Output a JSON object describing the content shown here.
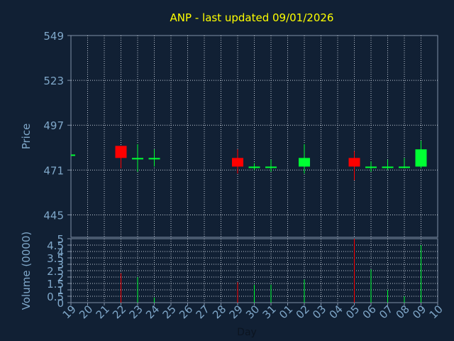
{
  "chart_data": [
    {
      "type": "candlestick",
      "title": "ANP - last updated 09/01/2026",
      "ylabel": "Price",
      "ylim": [
        432,
        549
      ],
      "yticks": [
        549,
        523,
        497,
        471,
        445
      ],
      "grid": true,
      "up_color": "#00ff33",
      "down_color": "#ff0000",
      "candles": [
        {
          "day": "19",
          "open": 480,
          "close": 480,
          "high": 480,
          "low": 480
        },
        {
          "day": "22",
          "open": 485,
          "close": 478,
          "high": 485,
          "low": 472
        },
        {
          "day": "23",
          "open": 478,
          "close": 478,
          "high": 486,
          "low": 470
        },
        {
          "day": "24",
          "open": 478,
          "close": 478,
          "high": 483,
          "low": 473
        },
        {
          "day": "29",
          "open": 478,
          "close": 473,
          "high": 483,
          "low": 469
        },
        {
          "day": "30",
          "open": 473,
          "close": 473,
          "high": 475,
          "low": 471
        },
        {
          "day": "31",
          "open": 473,
          "close": 473,
          "high": 477,
          "low": 470
        },
        {
          "day": "02",
          "open": 473,
          "close": 478,
          "high": 486,
          "low": 469
        },
        {
          "day": "05",
          "open": 478,
          "close": 473,
          "high": 482,
          "low": 465
        },
        {
          "day": "06",
          "open": 473,
          "close": 473,
          "high": 476,
          "low": 470
        },
        {
          "day": "07",
          "open": 473,
          "close": 473,
          "high": 477,
          "low": 471
        },
        {
          "day": "08",
          "open": 473,
          "close": 473,
          "high": 478,
          "low": 472
        },
        {
          "day": "09",
          "open": 473,
          "close": 483,
          "high": 488,
          "low": 472
        }
      ]
    },
    {
      "type": "bar",
      "ylabel": "Volume (0000)",
      "xlabel": "Day",
      "ylim": [
        0,
        5
      ],
      "yticks": [
        "0",
        "0.5",
        "1",
        "1.5",
        "2",
        "2.5",
        "3",
        "3.5",
        "4",
        "4.5",
        "5"
      ],
      "grid": true,
      "categories": [
        "19",
        "20",
        "21",
        "22",
        "23",
        "24",
        "25",
        "26",
        "27",
        "28",
        "29",
        "30",
        "31",
        "01",
        "02",
        "03",
        "04",
        "05",
        "06",
        "07",
        "08",
        "09",
        "10"
      ],
      "values": [
        0,
        0,
        0,
        2.3,
        2.0,
        0.4,
        0,
        0,
        0,
        0,
        1.6,
        1.4,
        1.4,
        0,
        1.8,
        0,
        0,
        5.0,
        2.6,
        1.0,
        0.5,
        4.5,
        0
      ],
      "bar_colors": [
        "",
        "",
        "",
        "#ff0000",
        "#00ff33",
        "#00ff33",
        "",
        "",
        "",
        "",
        "#ff0000",
        "#00ff33",
        "#00ff33",
        "",
        "#00ff33",
        "",
        "",
        "#ff0000",
        "#00ff33",
        "#00ff33",
        "#00ff33",
        "#00ff33",
        ""
      ]
    }
  ],
  "colors": {
    "background": "#112034",
    "plot_border": "#7f8fa6",
    "grid": "#c0c8d4",
    "title": "#ffff00",
    "axis_text": "#7fa7c9"
  }
}
